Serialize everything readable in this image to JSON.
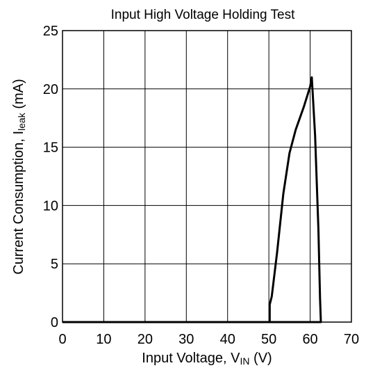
{
  "chart_data": {
    "type": "line",
    "title": "Input High Voltage Holding Test",
    "xlabel": [
      "Input Voltage, V",
      "IN",
      " (V)"
    ],
    "ylabel": [
      "Current Consumption, I",
      "leak",
      " (mA)"
    ],
    "x": [
      0,
      50.2,
      50.2,
      50.7,
      52,
      53.5,
      55,
      56.5,
      58.5,
      60,
      60.4,
      61.2,
      62,
      62.4,
      62.6,
      50.2
    ],
    "series": [
      {
        "color": "#000000",
        "values": [
          0,
          0,
          1.5,
          2.2,
          6,
          11,
          14.5,
          16.5,
          18.5,
          20.2,
          21,
          16,
          8,
          2,
          0,
          0
        ]
      }
    ],
    "xlim": [
      0,
      70
    ],
    "xticks": [
      0,
      10,
      20,
      30,
      40,
      50,
      60,
      70
    ],
    "ylim": [
      0,
      25
    ],
    "yticks": [
      0,
      5,
      10,
      15,
      20,
      25
    ],
    "grid": true
  }
}
